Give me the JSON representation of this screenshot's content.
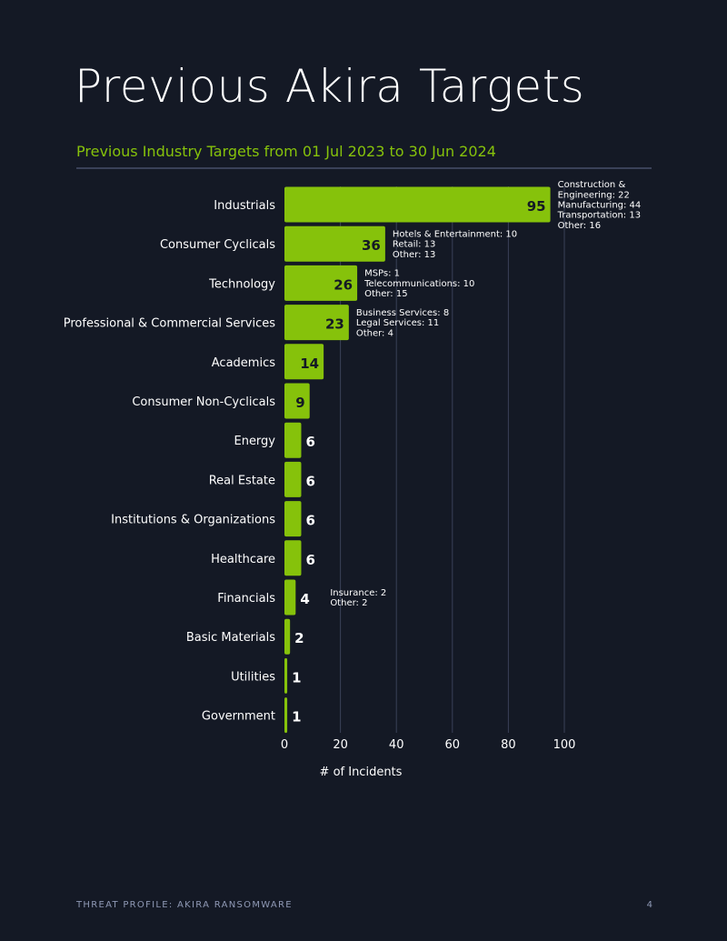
{
  "page": {
    "title": "Previous Akira Targets",
    "subtitle": "Previous Industry Targets from 01 Jul 2023 to 30 Jun 2024",
    "footer_left": "THREAT PROFILE: AKIRA RANSOMWARE",
    "page_number": "4"
  },
  "colors": {
    "background": "#141925",
    "accent": "#86c20b",
    "gridline": "#3a4158",
    "muted_text": "#8f99b5"
  },
  "chart_data": {
    "type": "bar",
    "orientation": "horizontal",
    "categories": [
      "Industrials",
      "Consumer Cyclicals",
      "Technology",
      "Professional & Commercial Services",
      "Academics",
      "Consumer Non-Cyclicals",
      "Energy",
      "Real Estate",
      "Institutions & Organizations",
      "Healthcare",
      "Financials",
      "Basic Materials",
      "Utilities",
      "Government"
    ],
    "values": [
      95,
      36,
      26,
      23,
      14,
      9,
      6,
      6,
      6,
      6,
      4,
      2,
      1,
      1
    ],
    "annotations": [
      [
        "Construction &",
        "Engineering: 22",
        "Manufacturing: 44",
        "Transportation: 13",
        "Other: 16"
      ],
      [
        "Hotels & Entertainment: 10",
        "Retail: 13",
        "Other: 13"
      ],
      [
        "MSPs: 1",
        "Telecommunications: 10",
        "Other: 15"
      ],
      [
        "Business Services: 8",
        "Legal Services: 11",
        "Other: 4"
      ],
      [],
      [],
      [],
      [],
      [],
      [],
      [
        "Insurance: 2",
        "Other: 2"
      ],
      [],
      [],
      []
    ],
    "xlabel": "# of Incidents",
    "ylabel": "",
    "xlim": [
      0,
      100
    ],
    "xticks": [
      0,
      20,
      40,
      60,
      80,
      100
    ],
    "grid": "vertical",
    "legend": "none"
  }
}
